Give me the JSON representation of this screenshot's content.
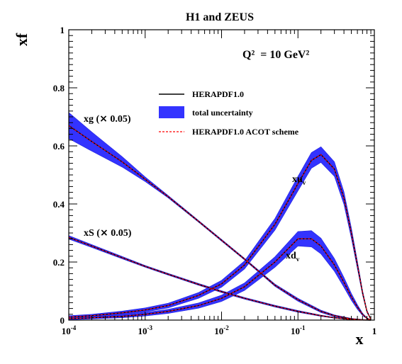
{
  "chart_data": {
    "type": "line",
    "title": "H1 and ZEUS",
    "scale_label": "Q²",
    "scale_value": "= 10 GeV²",
    "xlabel": "x",
    "ylabel": "xf",
    "x_scale": "log",
    "xlim": [
      0.0001,
      1
    ],
    "ylim": [
      0,
      1
    ],
    "x_ticks": [
      {
        "value": 0.0001,
        "base": "10",
        "exp": "-4"
      },
      {
        "value": 0.001,
        "base": "10",
        "exp": "-3"
      },
      {
        "value": 0.01,
        "base": "10",
        "exp": "-2"
      },
      {
        "value": 0.1,
        "base": "10",
        "exp": "-1"
      },
      {
        "value": 1,
        "base": "1",
        "exp": ""
      }
    ],
    "y_ticks": [
      {
        "value": 0,
        "label": "0"
      },
      {
        "value": 0.2,
        "label": "0.2"
      },
      {
        "value": 0.4,
        "label": "0.4"
      },
      {
        "value": 0.6,
        "label": "0.6"
      },
      {
        "value": 0.8,
        "label": "0.8"
      },
      {
        "value": 1,
        "label": "1"
      }
    ],
    "legend": {
      "placement": "top-center",
      "entries": [
        {
          "label": "HERAPDF1.0",
          "style": "line"
        },
        {
          "label": "total uncertainty",
          "style": "band"
        },
        {
          "label": "HERAPDF1.0 ACOT scheme",
          "style": "dashed"
        }
      ]
    },
    "colors": {
      "line": "#000000",
      "band": "#3333ff",
      "band_edge": "#2222dd",
      "acot": "#ff0000"
    },
    "series": [
      {
        "name": "xg (× 0.05)",
        "label_main": "xg (",
        "label_sym": "×",
        "label_rest": " 0.05)",
        "x": [
          0.0001,
          0.0002,
          0.0005,
          0.001,
          0.002,
          0.005,
          0.01,
          0.02,
          0.05,
          0.1,
          0.2,
          0.3,
          0.5,
          0.7,
          0.9
        ],
        "y": [
          0.67,
          0.615,
          0.545,
          0.485,
          0.425,
          0.34,
          0.275,
          0.21,
          0.12,
          0.07,
          0.03,
          0.015,
          0.004,
          0.001,
          0.0
        ],
        "band_half_width": [
          0.045,
          0.033,
          0.018,
          0.008,
          0.004,
          0.003,
          0.003,
          0.003,
          0.004,
          0.005,
          0.004,
          0.003,
          0.002,
          0.001,
          0.0
        ]
      },
      {
        "name": "xS (× 0.05)",
        "label_main": "xS (",
        "label_sym": "×",
        "label_rest": " 0.05)",
        "x": [
          0.0001,
          0.0002,
          0.0005,
          0.001,
          0.002,
          0.005,
          0.01,
          0.02,
          0.05,
          0.1,
          0.2,
          0.3,
          0.5,
          0.7,
          0.9
        ],
        "y": [
          0.285,
          0.255,
          0.215,
          0.185,
          0.158,
          0.123,
          0.098,
          0.075,
          0.048,
          0.03,
          0.015,
          0.008,
          0.002,
          0.0005,
          0.0
        ],
        "band_half_width": [
          0.006,
          0.005,
          0.004,
          0.003,
          0.003,
          0.003,
          0.003,
          0.003,
          0.003,
          0.003,
          0.002,
          0.0015,
          0.001,
          0.0005,
          0.0
        ]
      },
      {
        "name": "xu_v",
        "label_main": "xu",
        "label_sub": "v",
        "x": [
          0.0001,
          0.0002,
          0.0005,
          0.001,
          0.002,
          0.005,
          0.01,
          0.02,
          0.05,
          0.1,
          0.15,
          0.2,
          0.3,
          0.4,
          0.5,
          0.6,
          0.7,
          0.8,
          0.9
        ],
        "y": [
          0.01,
          0.015,
          0.025,
          0.035,
          0.05,
          0.085,
          0.125,
          0.19,
          0.33,
          0.47,
          0.55,
          0.57,
          0.52,
          0.42,
          0.3,
          0.19,
          0.095,
          0.03,
          0.003
        ],
        "band_half_width": [
          0.005,
          0.005,
          0.006,
          0.007,
          0.008,
          0.01,
          0.012,
          0.014,
          0.02,
          0.025,
          0.027,
          0.027,
          0.025,
          0.022,
          0.018,
          0.013,
          0.008,
          0.004,
          0.001
        ]
      },
      {
        "name": "xd_v",
        "label_main": "xd",
        "label_sub": "v",
        "x": [
          0.0001,
          0.0002,
          0.0005,
          0.001,
          0.002,
          0.005,
          0.01,
          0.02,
          0.05,
          0.1,
          0.15,
          0.2,
          0.3,
          0.4,
          0.5,
          0.6,
          0.7,
          0.8,
          0.9
        ],
        "y": [
          0.005,
          0.008,
          0.013,
          0.02,
          0.03,
          0.05,
          0.075,
          0.115,
          0.2,
          0.28,
          0.28,
          0.255,
          0.19,
          0.13,
          0.08,
          0.045,
          0.02,
          0.006,
          0.0005
        ],
        "band_half_width": [
          0.004,
          0.004,
          0.005,
          0.006,
          0.007,
          0.009,
          0.011,
          0.013,
          0.018,
          0.025,
          0.028,
          0.027,
          0.022,
          0.017,
          0.012,
          0.008,
          0.004,
          0.002,
          0.0005
        ]
      }
    ]
  }
}
